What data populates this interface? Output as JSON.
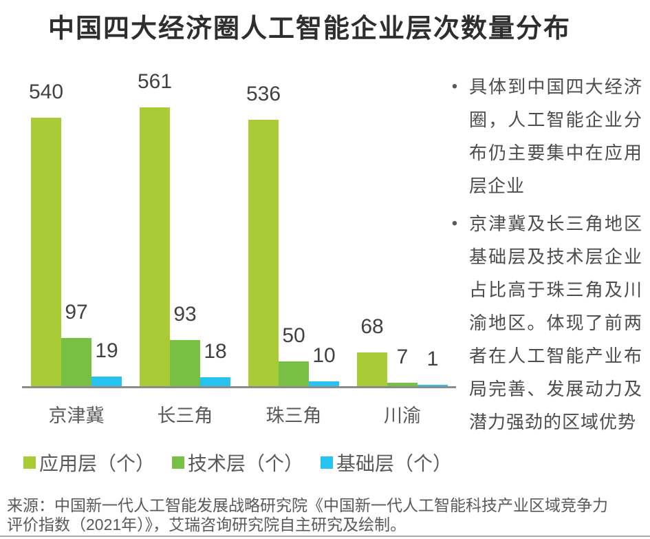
{
  "title": "中国四大经济圈人工智能企业层次数量分布",
  "chart_data": {
    "type": "bar",
    "title": "中国四大经济圈人工智能企业层次数量分布",
    "categories": [
      "京津冀",
      "长三角",
      "珠三角",
      "川渝"
    ],
    "series": [
      {
        "name": "应用层（个）",
        "color": "#a9cc36",
        "values": [
          540,
          561,
          536,
          68
        ]
      },
      {
        "name": "技术层（个）",
        "color": "#78c043",
        "values": [
          97,
          93,
          50,
          7
        ]
      },
      {
        "name": "基础层（个）",
        "color": "#27c3f0",
        "values": [
          19,
          18,
          10,
          1
        ]
      }
    ],
    "xlabel": "",
    "ylabel": "",
    "ylim": [
      0,
      600
    ],
    "grid": false,
    "value_labels": true,
    "legend_position": "bottom-left",
    "axis_color": "#8c8c8c"
  },
  "insights": {
    "bullets": [
      "具体到中国四大经济圈，人工智能企业分布仍主要集中在应用层企业",
      "京津冀及长三角地区基础层及技术层企业占比高于珠三角及川渝地区。体现了前两者在人工智能产业布局完善、发展动力及潜力强劲的区域优势"
    ]
  },
  "source": "来源：中国新一代人工智能发展战略研究院《中国新一代人工智能科技产业区域竞争力评价指数（2021年）》，艾瑞咨询研究院自主研究及绘制。"
}
